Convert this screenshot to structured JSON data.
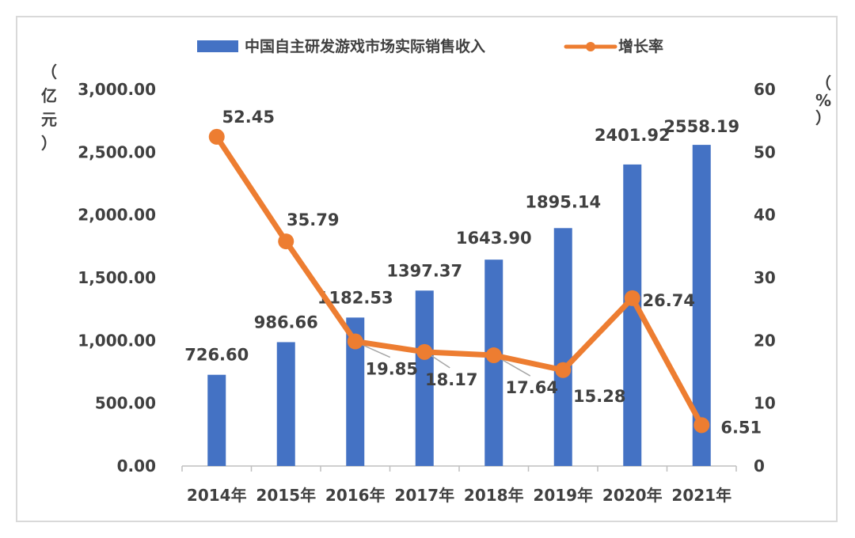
{
  "chart_data": {
    "type": "bar",
    "categories": [
      "2014年",
      "2015年",
      "2016年",
      "2017年",
      "2018年",
      "2019年",
      "2020年",
      "2021年"
    ],
    "series": [
      {
        "name": "中国自主研发游戏市场实际销售收入",
        "type": "bar",
        "axis": "left",
        "values": [
          726.6,
          986.66,
          1182.53,
          1397.37,
          1643.9,
          1895.14,
          2401.92,
          2558.19
        ],
        "labels": [
          "726.60",
          "986.66",
          "1182.53",
          "1397.37",
          "1643.90",
          "1895.14",
          "2401.92",
          "2558.19"
        ]
      },
      {
        "name": "增长率",
        "type": "line",
        "axis": "right",
        "values": [
          52.45,
          35.79,
          19.85,
          18.17,
          17.64,
          15.28,
          26.74,
          6.51
        ],
        "labels": [
          "52.45",
          "35.79",
          "19.85",
          "18.17",
          "17.64",
          "15.28",
          "26.74",
          "6.51"
        ]
      }
    ],
    "y_left": {
      "unit": "（亿元）",
      "ylim": [
        0,
        3000
      ],
      "ticks": [
        "0.00",
        "500.00",
        "1,000.00",
        "1,500.00",
        "2,000.00",
        "2,500.00",
        "3,000.00"
      ]
    },
    "y_right": {
      "unit": "（%）",
      "ylim": [
        0,
        60
      ],
      "ticks": [
        "0",
        "10",
        "20",
        "30",
        "40",
        "50",
        "60"
      ]
    },
    "legend_position": "top",
    "grid": false,
    "colors": {
      "bar": "#4472C4",
      "line": "#ED7D31",
      "text": "#404040",
      "axis": "#bfbfbf"
    }
  }
}
